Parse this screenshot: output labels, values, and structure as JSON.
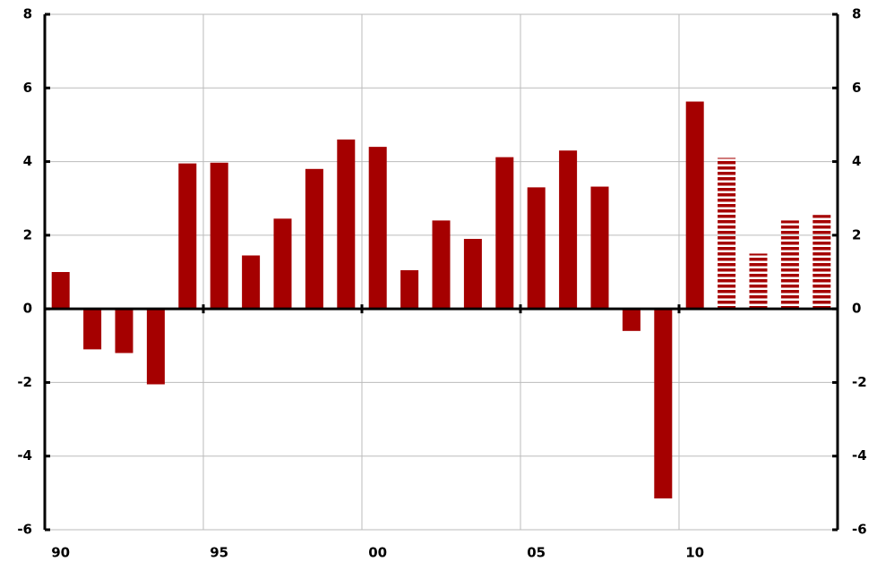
{
  "chart_data": {
    "type": "bar",
    "categories": [
      "90",
      null,
      null,
      null,
      null,
      "95",
      null,
      null,
      null,
      null,
      "00",
      null,
      null,
      null,
      null,
      "05",
      null,
      null,
      null,
      null,
      "10",
      null,
      null,
      null,
      null
    ],
    "series": [
      {
        "color": "#a50000",
        "pattern": "solid",
        "values": [
          1.0,
          -1.1,
          -1.2,
          -2.05,
          3.95,
          3.97,
          1.45,
          2.45,
          3.8,
          4.6,
          4.4,
          1.05,
          2.4,
          1.9,
          4.12,
          3.3,
          4.3,
          3.32,
          -0.6,
          -5.15,
          5.63,
          null,
          null,
          null,
          null
        ]
      },
      {
        "color": "#a50000",
        "pattern": "striped",
        "values": [
          null,
          null,
          null,
          null,
          null,
          null,
          null,
          null,
          null,
          null,
          null,
          null,
          null,
          null,
          null,
          null,
          null,
          null,
          null,
          null,
          null,
          4.1,
          1.5,
          2.4,
          2.55
        ]
      }
    ],
    "ylim": [
      -6,
      8
    ],
    "yticks": [
      -6,
      -4,
      -2,
      0,
      2,
      4,
      6,
      8
    ],
    "y2lim": [
      -6,
      8
    ],
    "y2ticks": [
      -6,
      -4,
      -2,
      0,
      2,
      4,
      6,
      8
    ],
    "grid": true
  }
}
